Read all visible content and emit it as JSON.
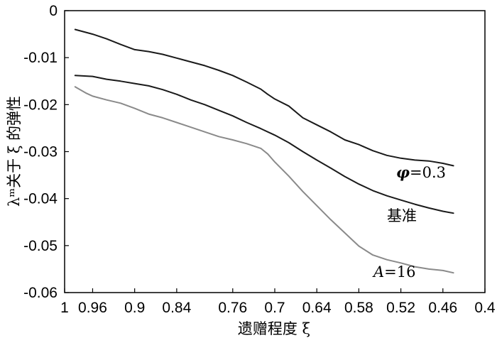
{
  "chart_data": {
    "type": "line",
    "xlabel": "遗赠程度 ξ",
    "ylabel": "λᵐ关于 ξ 的弹性",
    "x_reversed": true,
    "xlim": [
      1,
      0.4
    ],
    "ylim": [
      -0.06,
      0
    ],
    "xticks": [
      "1",
      "0.96",
      "0.9",
      "0.84",
      "0.76",
      "0.7",
      "0.64",
      "0.58",
      "0.52",
      "0.46",
      "0.4"
    ],
    "yticks": [
      "0",
      "-0.01",
      "-0.02",
      "-0.03",
      "-0.04",
      "-0.05",
      "-0.06"
    ],
    "grid": false,
    "series": [
      {
        "name": "φ=0.3",
        "label_symbol": "φ",
        "label_rest": "=0.3",
        "color": "#1a1a1a",
        "x": [
          0.985,
          0.96,
          0.94,
          0.92,
          0.9,
          0.88,
          0.86,
          0.84,
          0.82,
          0.8,
          0.78,
          0.76,
          0.74,
          0.72,
          0.71,
          0.7,
          0.68,
          0.66,
          0.64,
          0.62,
          0.6,
          0.58,
          0.56,
          0.54,
          0.52,
          0.5,
          0.48,
          0.46,
          0.445
        ],
        "y": [
          -0.004,
          -0.005,
          -0.006,
          -0.0072,
          -0.0083,
          -0.0087,
          -0.0093,
          -0.0101,
          -0.0109,
          -0.0117,
          -0.0127,
          -0.0138,
          -0.0152,
          -0.0167,
          -0.0178,
          -0.0188,
          -0.0203,
          -0.0228,
          -0.0243,
          -0.0258,
          -0.0275,
          -0.0285,
          -0.0298,
          -0.0308,
          -0.0314,
          -0.0318,
          -0.032,
          -0.0325,
          -0.033
        ]
      },
      {
        "name": "基准",
        "color": "#1a1a1a",
        "x": [
          0.985,
          0.96,
          0.94,
          0.92,
          0.9,
          0.88,
          0.86,
          0.84,
          0.82,
          0.8,
          0.78,
          0.76,
          0.74,
          0.72,
          0.7,
          0.68,
          0.66,
          0.64,
          0.62,
          0.6,
          0.58,
          0.56,
          0.54,
          0.52,
          0.5,
          0.48,
          0.46,
          0.445
        ],
        "y": [
          -0.0138,
          -0.014,
          -0.0146,
          -0.015,
          -0.0155,
          -0.016,
          -0.0168,
          -0.0178,
          -0.019,
          -0.02,
          -0.0212,
          -0.0224,
          -0.0238,
          -0.0251,
          -0.0265,
          -0.0281,
          -0.03,
          -0.0318,
          -0.0335,
          -0.0353,
          -0.0369,
          -0.0383,
          -0.0394,
          -0.0403,
          -0.0412,
          -0.042,
          -0.0427,
          -0.0431
        ]
      },
      {
        "name": "A=16",
        "label_symbol": "A",
        "label_rest": "=16",
        "color": "#8a8a8a",
        "x": [
          0.985,
          0.97,
          0.96,
          0.94,
          0.92,
          0.9,
          0.88,
          0.86,
          0.84,
          0.82,
          0.8,
          0.78,
          0.76,
          0.74,
          0.72,
          0.71,
          0.7,
          0.68,
          0.66,
          0.64,
          0.62,
          0.6,
          0.58,
          0.56,
          0.54,
          0.52,
          0.5,
          0.48,
          0.46,
          0.445
        ],
        "y": [
          -0.0162,
          -0.0175,
          -0.0182,
          -0.019,
          -0.0197,
          -0.0208,
          -0.022,
          -0.0228,
          -0.0238,
          -0.0248,
          -0.0258,
          -0.0268,
          -0.0275,
          -0.0283,
          -0.0293,
          -0.0305,
          -0.0322,
          -0.0352,
          -0.0385,
          -0.0415,
          -0.0445,
          -0.0473,
          -0.0501,
          -0.052,
          -0.053,
          -0.0537,
          -0.0545,
          -0.055,
          -0.0553,
          -0.0558
        ]
      }
    ]
  }
}
